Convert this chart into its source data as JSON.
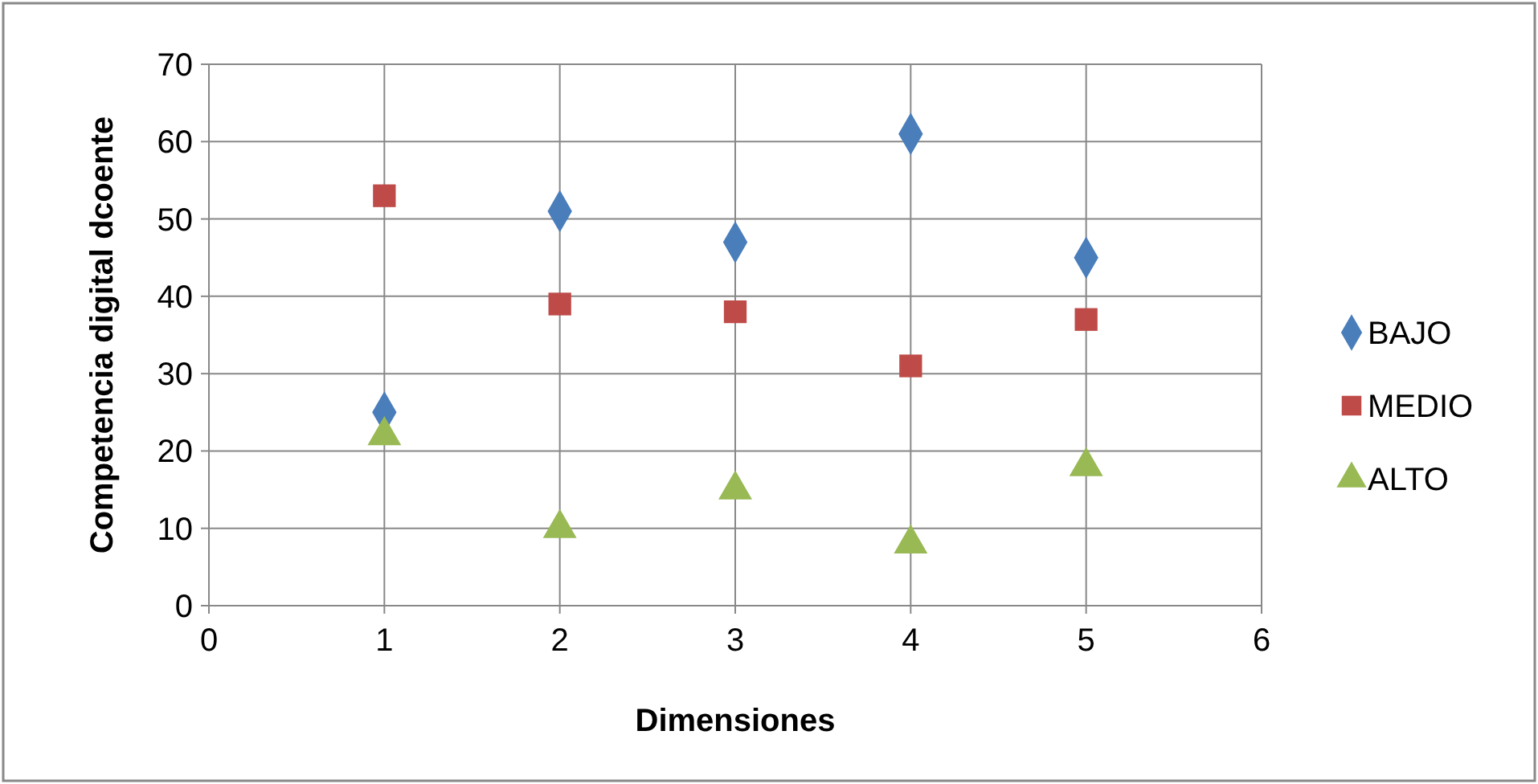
{
  "chart_data": {
    "type": "scatter",
    "xlabel": "Dimensiones",
    "ylabel": "Competencia digital dcoente",
    "x": [
      1,
      2,
      3,
      4,
      5
    ],
    "series": [
      {
        "name": "BAJO",
        "color": "#4a7ebb",
        "marker": "diamond",
        "values": [
          25,
          51,
          47,
          61,
          45
        ]
      },
      {
        "name": "MEDIO",
        "color": "#be4b48",
        "marker": "square",
        "values": [
          53,
          39,
          38,
          31,
          37
        ]
      },
      {
        "name": "ALTO",
        "color": "#98b954",
        "marker": "triangle",
        "values": [
          22,
          10,
          15,
          8,
          18
        ]
      }
    ],
    "xlim": [
      0,
      6
    ],
    "xticks": [
      0,
      1,
      2,
      3,
      4,
      5,
      6
    ],
    "ylim": [
      0,
      70
    ],
    "yticks": [
      0,
      10,
      20,
      30,
      40,
      50,
      60,
      70
    ],
    "grid": true,
    "legend": "right"
  }
}
